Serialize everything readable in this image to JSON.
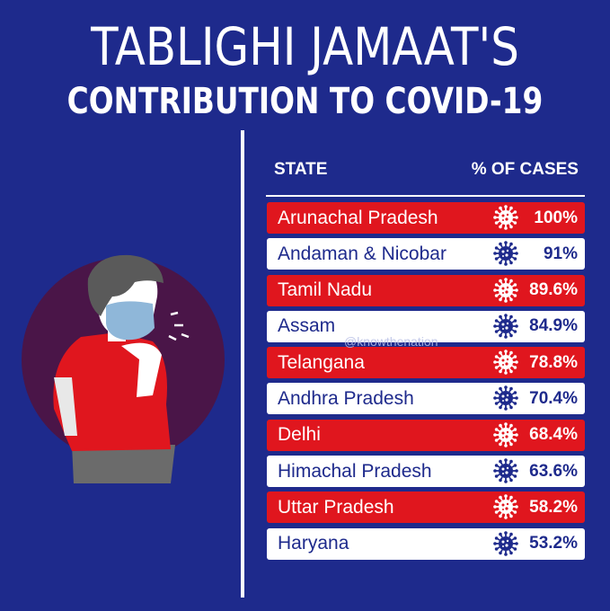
{
  "title_line1": "TABLIGHI JAMAAT'S",
  "title_line2": "CONTRIBUTION TO COVID-19",
  "watermark": "@knowthenation",
  "colors": {
    "background": "#1e2a8c",
    "red_row": "#e0161e",
    "white_row": "#ffffff"
  },
  "chart_data": {
    "type": "table",
    "columns": [
      "STATE",
      "% OF CASES"
    ],
    "rows": [
      {
        "state": "Arunachal Pradesh",
        "pct_label": "100%",
        "value": 100
      },
      {
        "state": "Andaman & Nicobar",
        "pct_label": "91%",
        "value": 91
      },
      {
        "state": "Tamil Nadu",
        "pct_label": "89.6%",
        "value": 89.6
      },
      {
        "state": "Assam",
        "pct_label": "84.9%",
        "value": 84.9
      },
      {
        "state": "Telangana",
        "pct_label": "78.8%",
        "value": 78.8
      },
      {
        "state": "Andhra Pradesh",
        "pct_label": "70.4%",
        "value": 70.4
      },
      {
        "state": "Delhi",
        "pct_label": "68.4%",
        "value": 68.4
      },
      {
        "state": "Himachal Pradesh",
        "pct_label": "63.6%",
        "value": 63.6
      },
      {
        "state": "Uttar Pradesh",
        "pct_label": "58.2%",
        "value": 58.2
      },
      {
        "state": "Haryana",
        "pct_label": "53.2%",
        "value": 53.2
      }
    ]
  }
}
